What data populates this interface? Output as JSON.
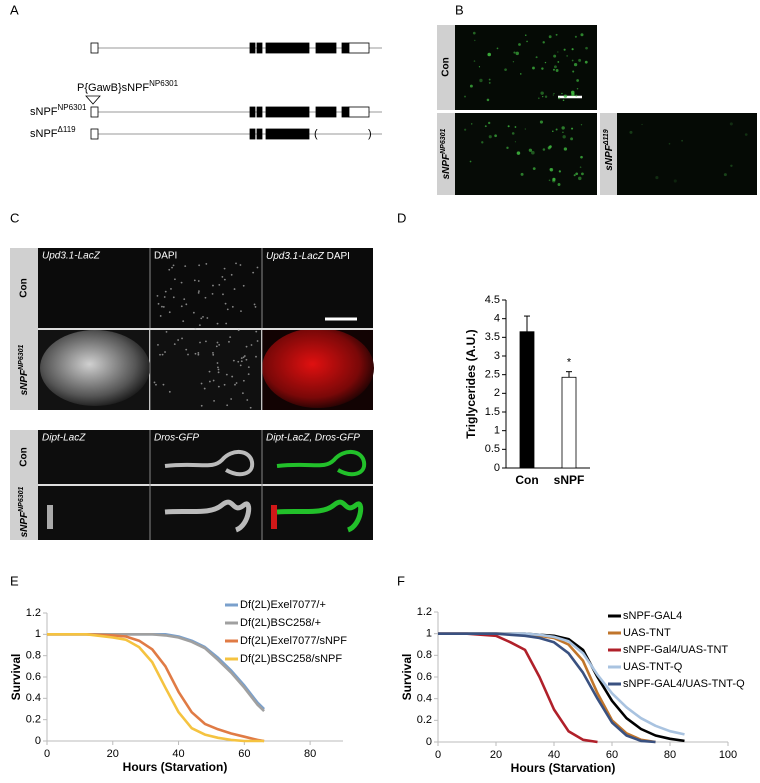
{
  "panel_labels": [
    "A",
    "B",
    "C",
    "D",
    "E",
    "F"
  ],
  "gene_diagram": {
    "insertion": {
      "label": "P{GawB}sNPF",
      "sup": "NP6301"
    },
    "alleles": [
      {
        "label": "sNPF",
        "sup": "NP6301"
      },
      {
        "label": "sNPF",
        "sup": "Δ119"
      }
    ]
  },
  "brain_images": [
    {
      "label": "Con"
    },
    {
      "label": "sNPF",
      "sup": "NP6301"
    },
    {
      "label": "sNPF",
      "sup": "Δ119"
    }
  ],
  "gut_images": {
    "upd_columns": [
      [
        "Upd3.1-LacZ"
      ],
      [
        "DAPI"
      ],
      [
        "Upd3.1-LacZ",
        "DAPI"
      ]
    ],
    "dipt_columns": [
      "Dipt-LacZ",
      "Dros-GFP",
      "Dipt-LacZ, Dros-GFP"
    ],
    "rows": [
      {
        "label": "Con"
      },
      {
        "label": "sNPF",
        "sup": "NP6301"
      }
    ]
  },
  "chart_data": [
    {
      "type": "bar",
      "ylabel": "Triglycerides (A.U.)",
      "categories": [
        "Con",
        "sNPF"
      ],
      "values": [
        3.65,
        2.43
      ],
      "errors": [
        0.42,
        0.15
      ],
      "colors": [
        "#000000",
        "#ffffff"
      ],
      "annotation": "*",
      "ylim": [
        0,
        4.5
      ],
      "yticks": [
        0,
        0.5,
        1,
        1.5,
        2,
        2.5,
        3,
        3.5,
        4,
        4.5
      ]
    },
    {
      "type": "line",
      "xlabel": "Hours (Starvation)",
      "ylabel": "Survival",
      "x": [
        0,
        12,
        20,
        24,
        28,
        32,
        36,
        40,
        44,
        48,
        52,
        56,
        60,
        64,
        66
      ],
      "series": [
        {
          "name": "Df(2L)Exel7077/+",
          "color": "#7aa0cc",
          "values": [
            1,
            1,
            1,
            1,
            1,
            1,
            1,
            0.98,
            0.94,
            0.88,
            0.78,
            0.66,
            0.52,
            0.36,
            0.3
          ]
        },
        {
          "name": "Df(2L)BSC258/+",
          "color": "#a0a0a0",
          "values": [
            1,
            1,
            1,
            1,
            1,
            1,
            0.99,
            0.97,
            0.93,
            0.87,
            0.76,
            0.64,
            0.5,
            0.34,
            0.28
          ]
        },
        {
          "name": "Df(2L)Exel7077/sNPF",
          "color": "#e07b45",
          "values": [
            1,
            1,
            0.99,
            0.98,
            0.94,
            0.86,
            0.7,
            0.46,
            0.27,
            0.16,
            0.11,
            0.07,
            0.04,
            0.01,
            0
          ]
        },
        {
          "name": "Df(2L)BSC258/sNPF",
          "color": "#f5c340",
          "values": [
            1,
            1,
            0.97,
            0.95,
            0.88,
            0.74,
            0.5,
            0.27,
            0.12,
            0.06,
            0.03,
            0.01,
            0,
            0,
            0
          ]
        }
      ],
      "xlim": [
        0,
        90
      ],
      "xticks": [
        0,
        20,
        40,
        60,
        80
      ],
      "ylim": [
        0,
        1.2
      ],
      "yticks": [
        0,
        0.2,
        0.4,
        0.6,
        0.8,
        1,
        1.2
      ],
      "legend": "upper right"
    },
    {
      "type": "line",
      "xlabel": "Hours (Starvation)",
      "ylabel": "Survival",
      "x": [
        0,
        10,
        20,
        25,
        30,
        35,
        40,
        45,
        50,
        55,
        60,
        65,
        70,
        75,
        80,
        85
      ],
      "series": [
        {
          "name": "sNPF-GAL4",
          "color": "#000000",
          "values": [
            1,
            1,
            1,
            1,
            1,
            0.99,
            0.98,
            0.95,
            0.85,
            0.6,
            0.38,
            0.22,
            0.12,
            0.06,
            0.03,
            0.01
          ]
        },
        {
          "name": "UAS-TNT",
          "color": "#c0752b",
          "values": [
            1,
            1,
            1,
            1,
            0.99,
            0.98,
            0.96,
            0.9,
            0.75,
            0.45,
            0.2,
            0.08,
            0.02,
            0,
            null,
            null
          ]
        },
        {
          "name": "sNPF-Gal4/UAS-TNT",
          "color": "#b0202a",
          "values": [
            1,
            1,
            0.98,
            0.92,
            0.85,
            0.6,
            0.3,
            0.1,
            0.02,
            0,
            null,
            null,
            null,
            null,
            null,
            null
          ]
        },
        {
          "name": "UAS-TNT-Q",
          "color": "#a9c3e0",
          "values": [
            1,
            1,
            1,
            1,
            1,
            0.99,
            0.97,
            0.93,
            0.82,
            0.62,
            0.45,
            0.32,
            0.22,
            0.15,
            0.1,
            0.07
          ]
        },
        {
          "name": "sNPF-GAL4/UAS-TNT-Q",
          "color": "#3a5180",
          "values": [
            1,
            1,
            1,
            0.99,
            0.98,
            0.96,
            0.92,
            0.82,
            0.64,
            0.4,
            0.18,
            0.06,
            0.01,
            0,
            null,
            null
          ]
        }
      ],
      "xlim": [
        0,
        100
      ],
      "xticks": [
        0,
        20,
        40,
        60,
        80,
        100
      ],
      "ylim": [
        0,
        1.2
      ],
      "yticks": [
        0,
        0.2,
        0.4,
        0.6,
        0.8,
        1,
        1.2
      ],
      "legend": "upper right"
    }
  ]
}
